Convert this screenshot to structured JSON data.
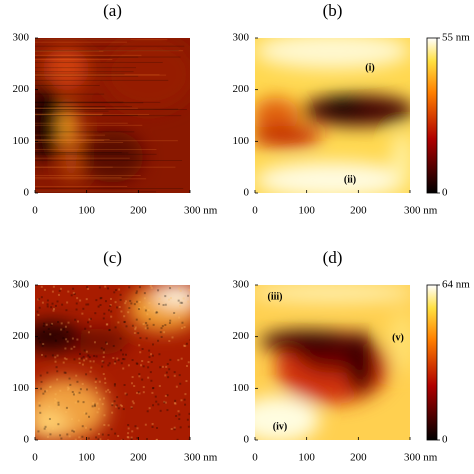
{
  "chart_data": [
    {
      "type": "heatmap",
      "title": "(a)",
      "xlim": [
        0,
        300
      ],
      "ylim": [
        0,
        300
      ],
      "xticks": [
        0,
        100,
        200,
        {
          "value": 300,
          "label": "300 nm"
        }
      ],
      "yticks": [
        0,
        100,
        200,
        300
      ]
    },
    {
      "type": "heatmap",
      "title": "(b)",
      "xlim": [
        0,
        300
      ],
      "ylim": [
        0,
        300
      ],
      "xticks": [
        0,
        100,
        200,
        {
          "value": 300,
          "label": "300 nm"
        }
      ],
      "yticks": [
        0,
        100,
        200,
        300
      ],
      "clim": [
        0,
        55
      ],
      "cticks": [
        0,
        {
          "value": 55,
          "label": "55 nm"
        }
      ],
      "annotations": [
        {
          "text": "(i)"
        },
        {
          "text": "(ii)"
        }
      ]
    },
    {
      "type": "heatmap",
      "title": "(c)",
      "xlim": [
        0,
        300
      ],
      "ylim": [
        0,
        300
      ],
      "xticks": [
        0,
        100,
        200,
        {
          "value": 300,
          "label": "300 nm"
        }
      ],
      "yticks": [
        0,
        100,
        200,
        300
      ]
    },
    {
      "type": "heatmap",
      "title": "(d)",
      "xlim": [
        0,
        300
      ],
      "ylim": [
        0,
        300
      ],
      "xticks": [
        0,
        100,
        200,
        {
          "value": 300,
          "label": "300 nm"
        }
      ],
      "yticks": [
        0,
        100,
        200,
        300
      ],
      "clim": [
        0,
        64
      ],
      "cticks": [
        0,
        {
          "value": 64,
          "label": "64 nm"
        }
      ],
      "annotations": [
        {
          "text": "(iii)"
        },
        {
          "text": "(iv)"
        },
        {
          "text": "(v)"
        }
      ]
    }
  ]
}
